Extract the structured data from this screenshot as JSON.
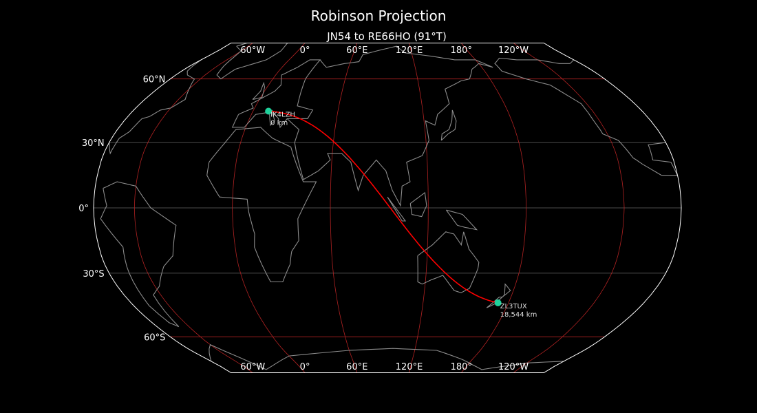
{
  "title": "Robinson Projection",
  "subtitle": "JN54 to RE66HO (91°T)",
  "colors": {
    "background": "#000000",
    "coastline": "#8c8c8c",
    "border": "#ffffff",
    "meridian": "#b22222",
    "path": "#ff0000",
    "station": "#1fd19b",
    "label": "#dddddd"
  },
  "longitude_labels": [
    "60°W",
    "0°",
    "60°E",
    "120°E",
    "180°",
    "120°W"
  ],
  "latitude_labels": [
    "60°N",
    "30°N",
    "0°",
    "30°S",
    "60°S"
  ],
  "stations": [
    {
      "call": "IK4LZH",
      "distance": "0 km"
    },
    {
      "call": "ZL3TUX",
      "distance": "18,544 km"
    }
  ]
}
